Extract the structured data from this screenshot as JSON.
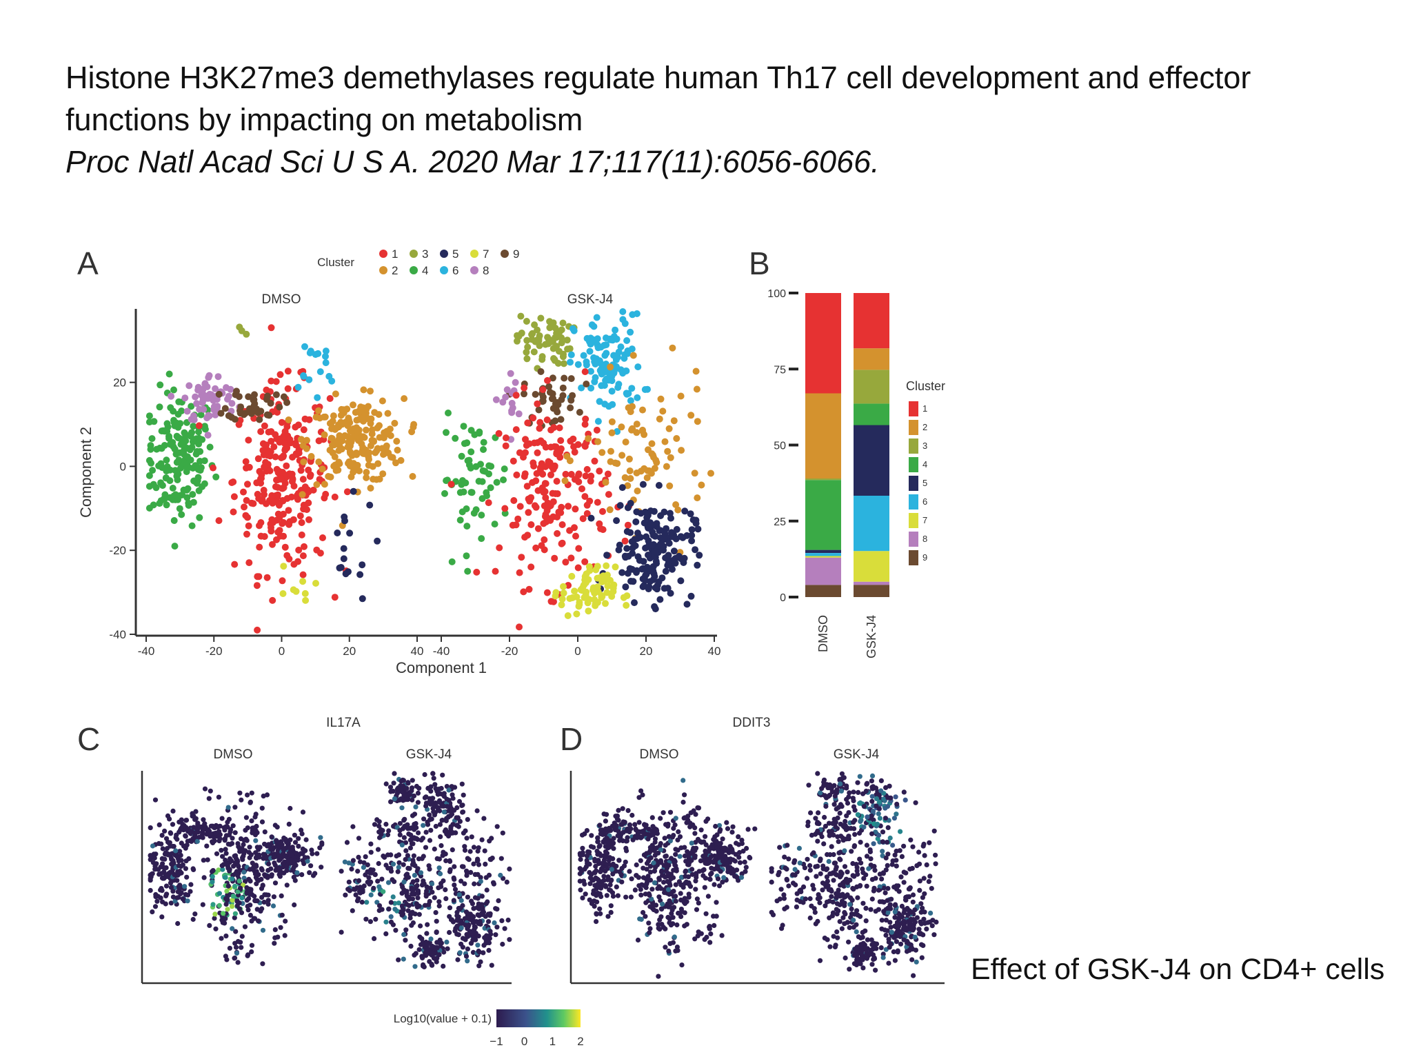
{
  "heading": {
    "title_line1": "Histone H3K27me3 demethylases regulate human Th17 cell development and effector",
    "title_line2": "functions by impacting on metabolism",
    "journal": "Proc Natl Acad Sci U S A. 2020 Mar 17;117(11):6056-6066."
  },
  "caption": "Effect of GSK-J4 on CD4+ cells",
  "colors": {
    "cluster": {
      "1": "#e63232",
      "2": "#d4922e",
      "3": "#97a83c",
      "4": "#3aaa46",
      "5": "#252a5c",
      "6": "#2bb3de",
      "7": "#d9dd3a",
      "8": "#b57fbd",
      "9": "#6b4a30"
    },
    "viridis_low": "#3b2a5e",
    "viridis_mid": "#2a9d8f",
    "viridis_high": "#e8e32a"
  },
  "chart_data": [
    {
      "panel": "A",
      "type": "scatter",
      "legend_title": "Cluster",
      "legend_items": [
        "1",
        "2",
        "3",
        "4",
        "5",
        "6",
        "7",
        "8",
        "9"
      ],
      "legend_placement": "top",
      "facets": [
        "DMSO",
        "GSK-J4"
      ],
      "xlabel": "Component 1",
      "ylabel": "Component 2",
      "xticks": [
        "-40",
        "-20",
        "0",
        "20",
        "40"
      ],
      "yticks": [
        "20",
        "0",
        "-20",
        "-40"
      ],
      "xlim": [
        -40,
        40
      ],
      "ylim": [
        -40,
        38
      ],
      "clusters_DMSO": [
        {
          "cluster": "4",
          "cx": -30,
          "cy": 2,
          "sx": 5,
          "sy": 8,
          "n": 170
        },
        {
          "cluster": "1",
          "cx": 0,
          "cy": -3,
          "sx": 7,
          "sy": 11,
          "n": 260
        },
        {
          "cluster": "2",
          "cx": 22,
          "cy": 6,
          "sx": 7,
          "sy": 5,
          "n": 200
        },
        {
          "cluster": "8",
          "cx": -21,
          "cy": 16,
          "sx": 4,
          "sy": 3,
          "n": 60
        },
        {
          "cluster": "9",
          "cx": -8,
          "cy": 15,
          "sx": 4,
          "sy": 2,
          "n": 40
        },
        {
          "cluster": "6",
          "cx": 9,
          "cy": 22,
          "sx": 4,
          "sy": 5,
          "n": 16
        },
        {
          "cluster": "5",
          "cx": 18,
          "cy": -20,
          "sx": 5,
          "sy": 6,
          "n": 16
        },
        {
          "cluster": "7",
          "cx": 3,
          "cy": -29,
          "sx": 3,
          "sy": 3,
          "n": 8
        },
        {
          "cluster": "3",
          "cx": -12,
          "cy": 30,
          "sx": 1,
          "sy": 3,
          "n": 3
        }
      ],
      "clusters_GSKJ4": [
        {
          "cluster": "3",
          "cx": -10,
          "cy": 30,
          "sx": 4,
          "sy": 3,
          "n": 60
        },
        {
          "cluster": "6",
          "cx": 9,
          "cy": 24,
          "sx": 5,
          "sy": 6,
          "n": 110
        },
        {
          "cluster": "9",
          "cx": -8,
          "cy": 16,
          "sx": 4,
          "sy": 3,
          "n": 40
        },
        {
          "cluster": "8",
          "cx": -20,
          "cy": 16,
          "sx": 3,
          "sy": 4,
          "n": 14
        },
        {
          "cluster": "4",
          "cx": -30,
          "cy": -3,
          "sx": 5,
          "sy": 7,
          "n": 60
        },
        {
          "cluster": "1",
          "cx": -7,
          "cy": -6,
          "sx": 8,
          "sy": 11,
          "n": 190
        },
        {
          "cluster": "2",
          "cx": 20,
          "cy": 2,
          "sx": 9,
          "sy": 9,
          "n": 80
        },
        {
          "cluster": "5",
          "cx": 22,
          "cy": -20,
          "sx": 6,
          "sy": 6,
          "n": 170
        },
        {
          "cluster": "7",
          "cx": 3,
          "cy": -30,
          "sx": 4,
          "sy": 3,
          "n": 70
        }
      ]
    },
    {
      "panel": "B",
      "type": "bar",
      "stacked": true,
      "categories": [
        "DMSO",
        "GSK-J4"
      ],
      "yticks": [
        "0",
        "25",
        "50",
        "75",
        "100"
      ],
      "ylim": [
        0,
        100
      ],
      "legend_title": "Cluster",
      "legend_items": [
        "1",
        "2",
        "3",
        "4",
        "5",
        "6",
        "7",
        "8",
        "9"
      ],
      "legend_placement": "right",
      "series": [
        {
          "name": "1",
          "values": [
            33,
            18
          ]
        },
        {
          "name": "2",
          "values": [
            28,
            7
          ]
        },
        {
          "name": "3",
          "values": [
            0.5,
            11
          ]
        },
        {
          "name": "4",
          "values": [
            23,
            7
          ]
        },
        {
          "name": "5",
          "values": [
            1,
            23
          ]
        },
        {
          "name": "6",
          "values": [
            1,
            18
          ]
        },
        {
          "name": "7",
          "values": [
            0.5,
            10
          ]
        },
        {
          "name": "8",
          "values": [
            9,
            1
          ]
        },
        {
          "name": "9",
          "values": [
            4,
            4
          ]
        }
      ]
    },
    {
      "panel": "C",
      "type": "scatter",
      "title": "IL17A",
      "facets": [
        "DMSO",
        "GSK-J4"
      ],
      "colorbar": {
        "label": "Log10(value + 0.1)",
        "ticks": [
          "-1",
          "0",
          "1",
          "2"
        ],
        "range": [
          -1,
          2
        ]
      },
      "hotspots": [
        {
          "facet": "DMSO",
          "cx": -5,
          "cy": -8,
          "s": 6,
          "level": 0.9
        },
        {
          "facet": "GSK-J4",
          "cx": -20,
          "cy": -12,
          "s": 5,
          "level": 0.7
        }
      ]
    },
    {
      "panel": "D",
      "type": "scatter",
      "title": "DDIT3",
      "facets": [
        "DMSO",
        "GSK-J4"
      ],
      "hotspots": [
        {
          "facet": "GSK-J4",
          "cx": 12,
          "cy": 20,
          "s": 8,
          "level": 0.6
        }
      ]
    }
  ]
}
